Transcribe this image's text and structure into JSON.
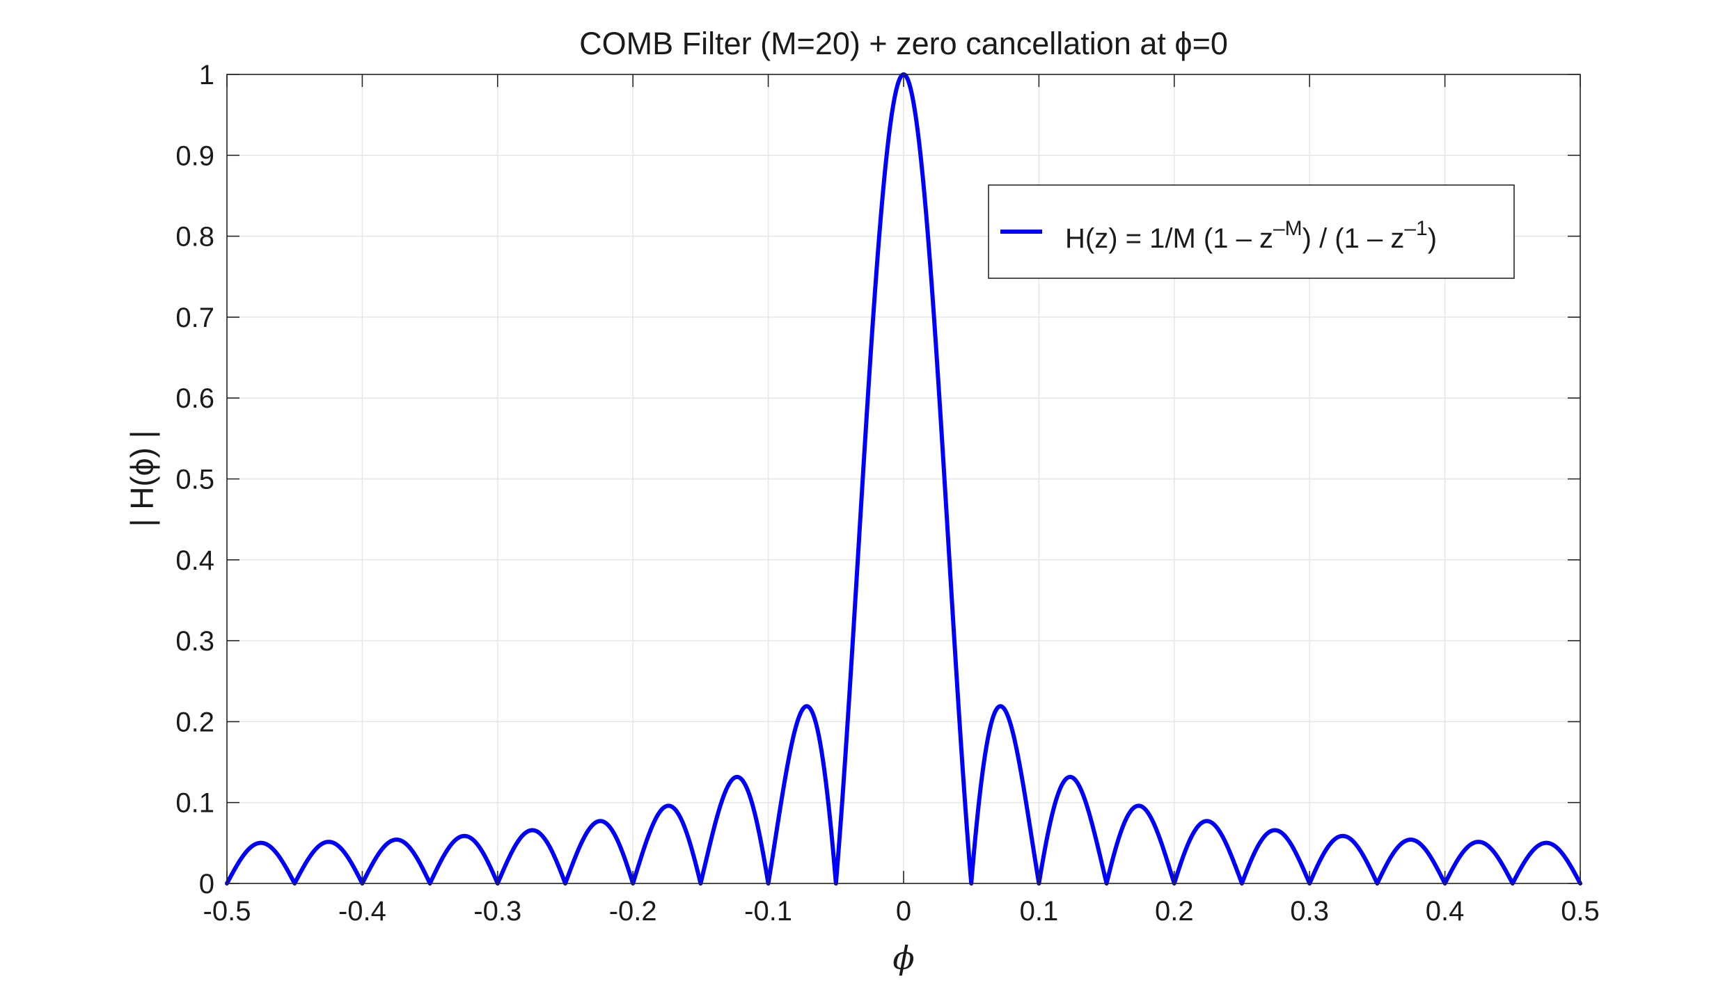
{
  "chart_data": {
    "type": "line",
    "title": "COMB Filter (M=20) + zero cancellation at ϕ=0",
    "xlabel": "ϕ",
    "ylabel": "| H(ϕ) |",
    "xlim": [
      -0.5,
      0.5
    ],
    "ylim": [
      0,
      1
    ],
    "xticks": [
      -0.5,
      -0.4,
      -0.3,
      -0.2,
      -0.1,
      0,
      0.1,
      0.2,
      0.3,
      0.4,
      0.5
    ],
    "xtick_labels": [
      "-0.5",
      "-0.4",
      "-0.3",
      "-0.2",
      "-0.1",
      "0",
      "0.1",
      "0.2",
      "0.3",
      "0.4",
      "0.5"
    ],
    "yticks": [
      0,
      0.1,
      0.2,
      0.3,
      0.4,
      0.5,
      0.6,
      0.7,
      0.8,
      0.9,
      1
    ],
    "ytick_labels": [
      "0",
      "0.1",
      "0.2",
      "0.3",
      "0.4",
      "0.5",
      "0.6",
      "0.7",
      "0.8",
      "0.9",
      "1"
    ],
    "grid": true,
    "legend_position": "top-right",
    "filter_order_M": 20,
    "series": [
      {
        "name": "H(z) = 1/M (1 – z^–M) / (1 – z^–1)",
        "color": "#0000ff",
        "function": "|sin(pi*M*phi) / (M*sin(pi*phi))|, M=20",
        "key_points": [
          {
            "x": -0.5,
            "y": 0.0
          },
          {
            "x": -0.475,
            "y": 0.05
          },
          {
            "x": -0.425,
            "y": 0.052
          },
          {
            "x": -0.375,
            "y": 0.054
          },
          {
            "x": -0.325,
            "y": 0.058
          },
          {
            "x": -0.275,
            "y": 0.066
          },
          {
            "x": -0.225,
            "y": 0.077
          },
          {
            "x": -0.175,
            "y": 0.095
          },
          {
            "x": -0.125,
            "y": 0.131
          },
          {
            "x": -0.072,
            "y": 0.218
          },
          {
            "x": -0.05,
            "y": 0.0
          },
          {
            "x": 0,
            "y": 1.0
          },
          {
            "x": 0.05,
            "y": 0.0
          },
          {
            "x": 0.072,
            "y": 0.218
          },
          {
            "x": 0.125,
            "y": 0.131
          },
          {
            "x": 0.175,
            "y": 0.095
          },
          {
            "x": 0.225,
            "y": 0.077
          },
          {
            "x": 0.275,
            "y": 0.066
          },
          {
            "x": 0.325,
            "y": 0.058
          },
          {
            "x": 0.375,
            "y": 0.054
          },
          {
            "x": 0.425,
            "y": 0.052
          },
          {
            "x": 0.475,
            "y": 0.05
          },
          {
            "x": 0.5,
            "y": 0.0
          }
        ]
      }
    ],
    "legend": {
      "prefix": "H(z) = 1/M (1 – z",
      "sup1": "–M",
      "middle": ") / (1 – z",
      "sup2": "–1",
      "suffix": ")"
    },
    "colors": {
      "line": "#0000ff",
      "axes": "#262626",
      "grid": "#e6e6e6"
    }
  }
}
